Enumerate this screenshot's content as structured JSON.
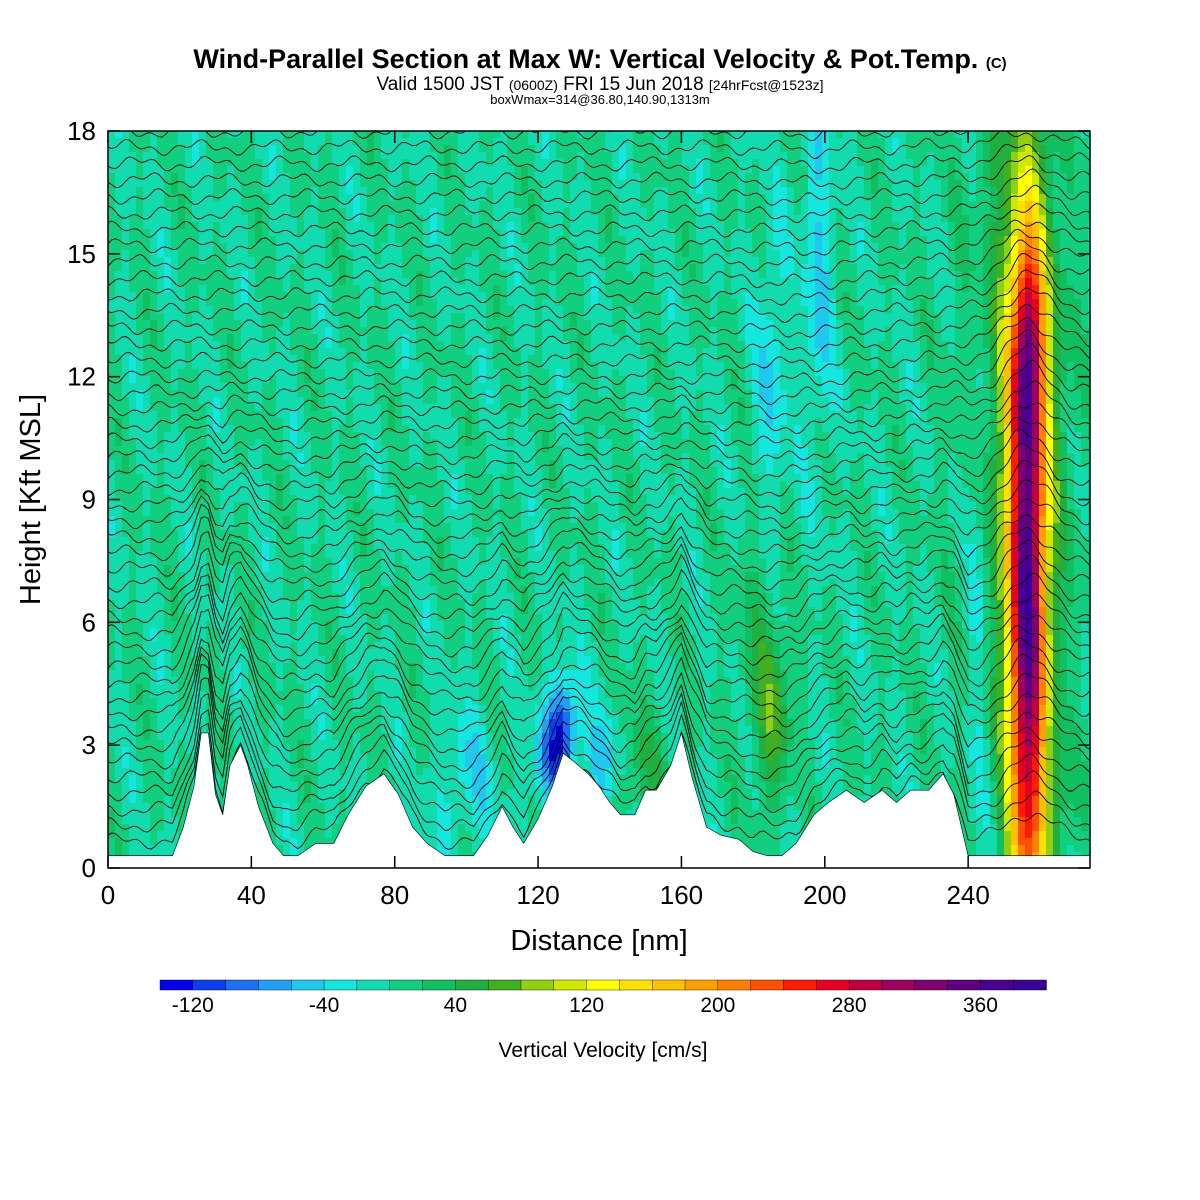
{
  "header": {
    "title": "Wind-Parallel Section at Max W: Vertical Velocity & Pot.Temp.",
    "title_mark": "(C)",
    "valid_prefix": "Valid 1500 JST",
    "valid_utc": "(0600Z)",
    "valid_date": "FRI 15 Jun 2018",
    "valid_fcst": "[24hrFcst@1523z]",
    "box_info": "boxWmax=314@36.80,140.90,1313m"
  },
  "chart_data": {
    "type": "heatmap",
    "title": "Wind-Parallel Section at Max W: Vertical Velocity & Pot.Temp.",
    "xlabel": "Distance [nm]",
    "ylabel": "Height [Kft MSL]",
    "xlim": [
      0,
      274
    ],
    "ylim": [
      0,
      18
    ],
    "x_ticks": [
      "0",
      "40",
      "80",
      "120",
      "160",
      "200",
      "240"
    ],
    "x_tick_values": [
      0,
      40,
      80,
      120,
      160,
      200,
      240
    ],
    "y_ticks": [
      "0",
      "3",
      "6",
      "9",
      "12",
      "15",
      "18"
    ],
    "y_tick_values": [
      0,
      3,
      6,
      9,
      12,
      15,
      18
    ],
    "background_value_cm_s": 0,
    "colorbar": {
      "title": "Vertical Velocity [cm/s]",
      "min": -140,
      "max": 400,
      "step": 20,
      "labels": [
        "-120",
        "-40",
        "40",
        "120",
        "200",
        "280",
        "360"
      ],
      "label_values": [
        -120,
        -40,
        40,
        120,
        200,
        280,
        360
      ],
      "colors": [
        "#0000ee",
        "#0a3ff0",
        "#1a70f2",
        "#22a0f5",
        "#20c8f0",
        "#14e6e0",
        "#10dcb0",
        "#10d080",
        "#10c060",
        "#20b040",
        "#40b020",
        "#90d010",
        "#d0e800",
        "#ffff00",
        "#ffe000",
        "#ffc000",
        "#ffa000",
        "#ff8000",
        "#ff5000",
        "#ff1a00",
        "#e80020",
        "#c00040",
        "#a00060",
        "#800070",
        "#600080",
        "#4a0090",
        "#3a0098"
      ]
    },
    "terrain_kft": [
      [
        0,
        0.3
      ],
      [
        10,
        0.3
      ],
      [
        18,
        0.3
      ],
      [
        21,
        1.0
      ],
      [
        24,
        2.0
      ],
      [
        26,
        3.3
      ],
      [
        28,
        3.3
      ],
      [
        30,
        1.8
      ],
      [
        32,
        1.3
      ],
      [
        34,
        2.5
      ],
      [
        37,
        3.0
      ],
      [
        39,
        2.5
      ],
      [
        42,
        1.5
      ],
      [
        46,
        0.6
      ],
      [
        49,
        0.3
      ],
      [
        53,
        0.3
      ],
      [
        58,
        0.6
      ],
      [
        63,
        0.6
      ],
      [
        67,
        1.3
      ],
      [
        72,
        2.0
      ],
      [
        77,
        2.3
      ],
      [
        81,
        1.8
      ],
      [
        85,
        1.0
      ],
      [
        89,
        0.6
      ],
      [
        94,
        0.3
      ],
      [
        98,
        0.3
      ],
      [
        102,
        0.3
      ],
      [
        106,
        0.8
      ],
      [
        110,
        1.5
      ],
      [
        113,
        1.0
      ],
      [
        116,
        0.6
      ],
      [
        120,
        1.2
      ],
      [
        124,
        2.0
      ],
      [
        127,
        2.8
      ],
      [
        130,
        2.6
      ],
      [
        134,
        2.3
      ],
      [
        137,
        2.0
      ],
      [
        140,
        1.6
      ],
      [
        143,
        1.3
      ],
      [
        147,
        1.3
      ],
      [
        150,
        1.9
      ],
      [
        153,
        1.9
      ],
      [
        157,
        2.5
      ],
      [
        160,
        3.3
      ],
      [
        163,
        2.2
      ],
      [
        167,
        1.0
      ],
      [
        171,
        0.8
      ],
      [
        176,
        0.7
      ],
      [
        180,
        0.4
      ],
      [
        184,
        0.3
      ],
      [
        188,
        0.3
      ],
      [
        192,
        0.6
      ],
      [
        197,
        1.3
      ],
      [
        201,
        1.6
      ],
      [
        206,
        1.9
      ],
      [
        211,
        1.6
      ],
      [
        216,
        1.9
      ],
      [
        220,
        1.6
      ],
      [
        224,
        1.9
      ],
      [
        229,
        1.9
      ],
      [
        233,
        2.3
      ],
      [
        236,
        1.8
      ],
      [
        240,
        0.3
      ],
      [
        262,
        0.3
      ],
      [
        274,
        0.3
      ]
    ],
    "w_features": [
      {
        "x": 256.5,
        "z": 6.0,
        "sx": 3.8,
        "sz": 6.2,
        "w": 330
      },
      {
        "x": 257.0,
        "z": 12.8,
        "sx": 3.0,
        "sz": 1.6,
        "w": 120
      },
      {
        "x": 254.0,
        "z": 11.5,
        "sx": 9.0,
        "sz": 5.5,
        "w": 70
      },
      {
        "x": 127.0,
        "z": 3.4,
        "sx": 3.0,
        "sz": 0.9,
        "w": -110
      },
      {
        "x": 122.5,
        "z": 2.6,
        "sx": 3.0,
        "sz": 0.8,
        "w": -60
      },
      {
        "x": 138.0,
        "z": 2.6,
        "sx": 2.8,
        "sz": 0.8,
        "w": -55
      },
      {
        "x": 186.0,
        "z": 3.5,
        "sx": 3.0,
        "sz": 1.4,
        "w": 55
      },
      {
        "x": 182.0,
        "z": 5.2,
        "sx": 4.0,
        "sz": 2.0,
        "w": 35
      },
      {
        "x": 243.0,
        "z": 7.5,
        "sx": 2.5,
        "sz": 4.5,
        "w": -40
      },
      {
        "x": 198.0,
        "z": 14.5,
        "sx": 3.0,
        "sz": 3.0,
        "w": -45
      },
      {
        "x": 185.0,
        "z": 12.0,
        "sx": 3.0,
        "sz": 2.5,
        "w": -40
      },
      {
        "x": 100.0,
        "z": 2.2,
        "sx": 6.0,
        "sz": 1.2,
        "w": -35
      },
      {
        "x": 150.0,
        "z": 2.4,
        "sx": 5.0,
        "sz": 1.0,
        "w": 35
      },
      {
        "x": 265.0,
        "z": 1.4,
        "sx": 4.0,
        "sz": 1.0,
        "w": 30
      }
    ],
    "isentropes": {
      "count": 46,
      "kft_spacing": 0.4,
      "contour_color": "#000000"
    }
  }
}
